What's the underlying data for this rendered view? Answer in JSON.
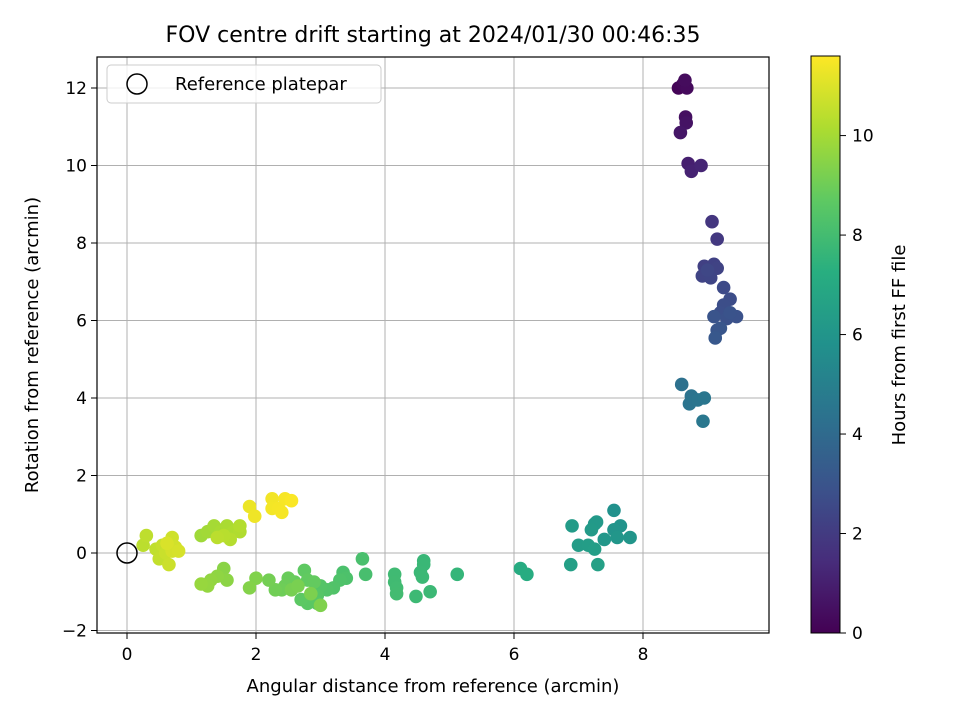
{
  "chart_data": {
    "type": "scatter",
    "title": "FOV centre drift starting at 2024/01/30 00:46:35",
    "xlabel": "Angular distance from reference (arcmin)",
    "ylabel": "Rotation from reference (arcmin)",
    "xlim": [
      -0.48,
      9.95
    ],
    "ylim": [
      -2.0,
      12.8
    ],
    "xticks": [
      0,
      2,
      4,
      6,
      8
    ],
    "yticks": [
      -2,
      0,
      2,
      4,
      6,
      8,
      10,
      12
    ],
    "grid": true,
    "legend": {
      "position": "top-left",
      "entries": [
        "Reference platepar"
      ]
    },
    "reference_point": {
      "x": 0,
      "y": 0,
      "label": "Reference platepar"
    },
    "colorbar": {
      "label": "Hours from first FF file",
      "colormap": "viridis",
      "range": [
        0,
        11.6
      ],
      "ticks": [
        0,
        2,
        4,
        6,
        8,
        10
      ]
    },
    "points": [
      {
        "x": 8.55,
        "y": 12.0,
        "t": 0.1
      },
      {
        "x": 8.62,
        "y": 12.1,
        "t": 0.2
      },
      {
        "x": 8.68,
        "y": 12.0,
        "t": 0.3
      },
      {
        "x": 8.65,
        "y": 12.2,
        "t": 0.35
      },
      {
        "x": 8.66,
        "y": 11.25,
        "t": 0.5
      },
      {
        "x": 8.67,
        "y": 11.1,
        "t": 0.6
      },
      {
        "x": 8.58,
        "y": 10.85,
        "t": 0.7
      },
      {
        "x": 8.7,
        "y": 10.05,
        "t": 1.0
      },
      {
        "x": 8.75,
        "y": 9.85,
        "t": 1.1
      },
      {
        "x": 8.9,
        "y": 10.0,
        "t": 1.2
      },
      {
        "x": 9.07,
        "y": 8.55,
        "t": 1.8
      },
      {
        "x": 9.15,
        "y": 8.1,
        "t": 1.9
      },
      {
        "x": 8.95,
        "y": 7.4,
        "t": 2.2
      },
      {
        "x": 9.1,
        "y": 7.45,
        "t": 2.25
      },
      {
        "x": 9.15,
        "y": 7.35,
        "t": 2.3
      },
      {
        "x": 8.92,
        "y": 7.15,
        "t": 2.35
      },
      {
        "x": 9.05,
        "y": 7.1,
        "t": 2.4
      },
      {
        "x": 9.0,
        "y": 7.3,
        "t": 2.45
      },
      {
        "x": 9.25,
        "y": 6.85,
        "t": 2.6
      },
      {
        "x": 9.35,
        "y": 6.55,
        "t": 2.7
      },
      {
        "x": 9.25,
        "y": 6.4,
        "t": 2.75
      },
      {
        "x": 9.2,
        "y": 6.2,
        "t": 2.8
      },
      {
        "x": 9.3,
        "y": 6.05,
        "t": 2.85
      },
      {
        "x": 9.45,
        "y": 6.1,
        "t": 2.9
      },
      {
        "x": 9.35,
        "y": 6.2,
        "t": 2.95
      },
      {
        "x": 9.1,
        "y": 6.1,
        "t": 3.0
      },
      {
        "x": 9.15,
        "y": 5.75,
        "t": 3.05
      },
      {
        "x": 9.2,
        "y": 5.8,
        "t": 3.1
      },
      {
        "x": 9.12,
        "y": 5.55,
        "t": 3.15
      },
      {
        "x": 8.6,
        "y": 4.35,
        "t": 4.3
      },
      {
        "x": 8.75,
        "y": 4.05,
        "t": 4.4
      },
      {
        "x": 8.72,
        "y": 3.85,
        "t": 4.45
      },
      {
        "x": 8.85,
        "y": 3.95,
        "t": 4.5
      },
      {
        "x": 8.95,
        "y": 4.0,
        "t": 4.55
      },
      {
        "x": 8.93,
        "y": 3.4,
        "t": 4.6
      },
      {
        "x": 7.55,
        "y": 1.1,
        "t": 5.8
      },
      {
        "x": 7.65,
        "y": 0.7,
        "t": 5.9
      },
      {
        "x": 7.55,
        "y": 0.6,
        "t": 5.95
      },
      {
        "x": 7.8,
        "y": 0.4,
        "t": 6.0
      },
      {
        "x": 7.6,
        "y": 0.4,
        "t": 6.05
      },
      {
        "x": 7.4,
        "y": 0.35,
        "t": 6.1
      },
      {
        "x": 7.25,
        "y": 0.75,
        "t": 6.15
      },
      {
        "x": 7.28,
        "y": 0.8,
        "t": 6.2
      },
      {
        "x": 7.2,
        "y": 0.6,
        "t": 6.25
      },
      {
        "x": 6.9,
        "y": 0.7,
        "t": 6.3
      },
      {
        "x": 7.0,
        "y": 0.2,
        "t": 6.35
      },
      {
        "x": 7.15,
        "y": 0.2,
        "t": 6.4
      },
      {
        "x": 7.25,
        "y": 0.1,
        "t": 6.45
      },
      {
        "x": 6.88,
        "y": -0.3,
        "t": 6.5
      },
      {
        "x": 7.3,
        "y": -0.3,
        "t": 6.55
      },
      {
        "x": 6.1,
        "y": -0.4,
        "t": 7.1
      },
      {
        "x": 6.2,
        "y": -0.55,
        "t": 7.15
      },
      {
        "x": 5.12,
        "y": -0.55,
        "t": 7.6
      },
      {
        "x": 4.6,
        "y": -0.2,
        "t": 7.7
      },
      {
        "x": 4.6,
        "y": -0.3,
        "t": 7.72
      },
      {
        "x": 4.55,
        "y": -0.5,
        "t": 7.75
      },
      {
        "x": 4.58,
        "y": -0.62,
        "t": 7.78
      },
      {
        "x": 4.7,
        "y": -1.0,
        "t": 7.8
      },
      {
        "x": 4.48,
        "y": -1.12,
        "t": 7.82
      },
      {
        "x": 4.15,
        "y": -0.55,
        "t": 7.9
      },
      {
        "x": 4.15,
        "y": -0.75,
        "t": 7.92
      },
      {
        "x": 4.18,
        "y": -0.9,
        "t": 7.95
      },
      {
        "x": 4.18,
        "y": -1.05,
        "t": 7.97
      },
      {
        "x": 3.7,
        "y": -0.55,
        "t": 8.1
      },
      {
        "x": 3.65,
        "y": -0.15,
        "t": 8.15
      },
      {
        "x": 3.35,
        "y": -0.5,
        "t": 8.2
      },
      {
        "x": 3.4,
        "y": -0.65,
        "t": 8.25
      },
      {
        "x": 3.3,
        "y": -0.7,
        "t": 8.3
      },
      {
        "x": 3.2,
        "y": -0.9,
        "t": 8.35
      },
      {
        "x": 3.1,
        "y": -0.95,
        "t": 8.4
      },
      {
        "x": 3.0,
        "y": -0.85,
        "t": 8.45
      },
      {
        "x": 2.95,
        "y": -1.1,
        "t": 8.5
      },
      {
        "x": 2.95,
        "y": -1.3,
        "t": 8.55
      },
      {
        "x": 2.8,
        "y": -1.3,
        "t": 8.6
      },
      {
        "x": 2.7,
        "y": -1.2,
        "t": 8.65
      },
      {
        "x": 2.75,
        "y": -0.45,
        "t": 8.7
      },
      {
        "x": 2.8,
        "y": -0.7,
        "t": 8.75
      },
      {
        "x": 2.9,
        "y": -0.75,
        "t": 8.8
      },
      {
        "x": 2.6,
        "y": -0.75,
        "t": 8.85
      },
      {
        "x": 2.5,
        "y": -0.65,
        "t": 8.9
      },
      {
        "x": 2.45,
        "y": -0.85,
        "t": 8.95
      },
      {
        "x": 2.4,
        "y": -0.95,
        "t": 9.0
      },
      {
        "x": 2.3,
        "y": -0.95,
        "t": 9.05
      },
      {
        "x": 2.2,
        "y": -0.7,
        "t": 9.1
      },
      {
        "x": 2.55,
        "y": -0.95,
        "t": 9.15
      },
      {
        "x": 2.65,
        "y": -0.85,
        "t": 9.2
      },
      {
        "x": 2.85,
        "y": -1.05,
        "t": 9.25
      },
      {
        "x": 3.0,
        "y": -1.35,
        "t": 9.3
      },
      {
        "x": 2.0,
        "y": -0.65,
        "t": 9.35
      },
      {
        "x": 1.9,
        "y": -0.9,
        "t": 9.4
      },
      {
        "x": 1.5,
        "y": -0.4,
        "t": 9.5
      },
      {
        "x": 1.55,
        "y": -0.7,
        "t": 9.55
      },
      {
        "x": 1.4,
        "y": -0.6,
        "t": 9.6
      },
      {
        "x": 1.3,
        "y": -0.7,
        "t": 9.65
      },
      {
        "x": 1.25,
        "y": -0.85,
        "t": 9.7
      },
      {
        "x": 1.15,
        "y": -0.8,
        "t": 9.75
      },
      {
        "x": 1.15,
        "y": 0.45,
        "t": 9.9
      },
      {
        "x": 1.25,
        "y": 0.55,
        "t": 9.95
      },
      {
        "x": 1.35,
        "y": 0.7,
        "t": 10.0
      },
      {
        "x": 1.45,
        "y": 0.55,
        "t": 10.05
      },
      {
        "x": 1.55,
        "y": 0.7,
        "t": 10.1
      },
      {
        "x": 1.65,
        "y": 0.55,
        "t": 10.15
      },
      {
        "x": 1.75,
        "y": 0.55,
        "t": 10.2
      },
      {
        "x": 1.75,
        "y": 0.7,
        "t": 10.25
      },
      {
        "x": 1.6,
        "y": 0.35,
        "t": 10.3
      },
      {
        "x": 1.5,
        "y": 0.45,
        "t": 10.35
      },
      {
        "x": 1.4,
        "y": 0.4,
        "t": 10.4
      },
      {
        "x": 0.25,
        "y": 0.2,
        "t": 10.4
      },
      {
        "x": 0.3,
        "y": 0.45,
        "t": 10.45
      },
      {
        "x": 0.45,
        "y": 0.1,
        "t": 10.5
      },
      {
        "x": 0.5,
        "y": -0.15,
        "t": 10.55
      },
      {
        "x": 0.55,
        "y": 0.2,
        "t": 10.6
      },
      {
        "x": 0.6,
        "y": 0.0,
        "t": 10.65
      },
      {
        "x": 0.65,
        "y": -0.3,
        "t": 10.7
      },
      {
        "x": 0.7,
        "y": 0.4,
        "t": 10.75
      },
      {
        "x": 0.75,
        "y": 0.15,
        "t": 10.8
      },
      {
        "x": 0.7,
        "y": 0.05,
        "t": 10.85
      },
      {
        "x": 0.8,
        "y": 0.05,
        "t": 10.9
      },
      {
        "x": 0.62,
        "y": 0.25,
        "t": 10.95
      },
      {
        "x": 1.9,
        "y": 1.2,
        "t": 11.3
      },
      {
        "x": 1.98,
        "y": 0.95,
        "t": 11.35
      },
      {
        "x": 2.25,
        "y": 1.4,
        "t": 11.4
      },
      {
        "x": 2.25,
        "y": 1.15,
        "t": 11.42
      },
      {
        "x": 2.35,
        "y": 1.15,
        "t": 11.45
      },
      {
        "x": 2.4,
        "y": 1.05,
        "t": 11.48
      },
      {
        "x": 2.45,
        "y": 1.4,
        "t": 11.5
      },
      {
        "x": 2.55,
        "y": 1.35,
        "t": 11.55
      }
    ]
  }
}
